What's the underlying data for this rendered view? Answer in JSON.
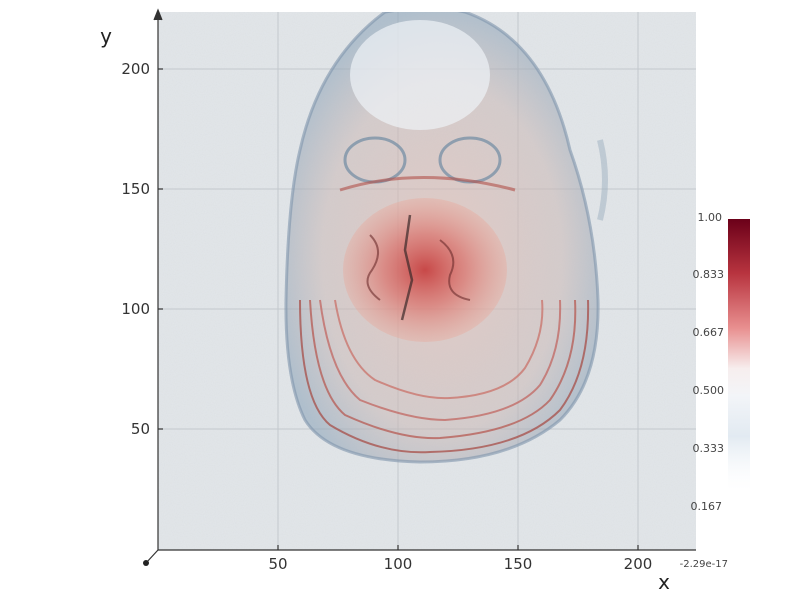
{
  "chart_data": {
    "type": "volume",
    "xlabel": "x",
    "ylabel": "y",
    "x_ticks": [
      "50",
      "100",
      "150",
      "200"
    ],
    "y_ticks": [
      "50",
      "100",
      "150",
      "200"
    ],
    "origin_label": "-2.29e-17",
    "colorbar": {
      "ticks": [
        "1.00",
        "0.833",
        "0.667",
        "0.500",
        "0.333",
        "0.167"
      ],
      "colors": [
        "#6b0019",
        "#b8343f",
        "#e88f8f",
        "#f7f7f7",
        "#b6cde0",
        "#2e6a9b"
      ]
    },
    "colors": {
      "background_plane": "#e3e7ea",
      "axis": "#333333",
      "grid": "#c8cdd2"
    }
  }
}
